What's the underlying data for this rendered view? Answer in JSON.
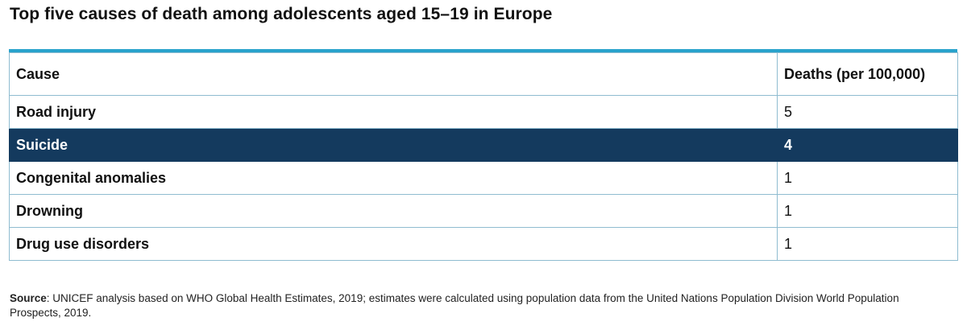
{
  "title": "Top five causes of death among adolescents aged 15–19 in Europe",
  "table": {
    "headers": [
      "Cause",
      "Deaths (per 100,000)"
    ],
    "rows": [
      {
        "cause": "Road injury",
        "deaths": "5"
      },
      {
        "cause": "Suicide",
        "deaths": "4"
      },
      {
        "cause": "Congenital anomalies",
        "deaths": "1"
      },
      {
        "cause": "Drowning",
        "deaths": "1"
      },
      {
        "cause": "Drug use disorders",
        "deaths": "1"
      }
    ],
    "highlight_color": "#143a5e",
    "accent_color": "#29a3cc"
  },
  "source": {
    "label": "Source",
    "text": ": UNICEF analysis based on WHO Global Health Estimates, 2019; estimates were calculated using population data from the United Nations Population Division World Population Prospects, 2019."
  },
  "chart_data": {
    "type": "table",
    "title": "Top five causes of death among adolescents aged 15–19 in Europe",
    "columns": [
      "Cause",
      "Deaths (per 100,000)"
    ],
    "categories": [
      "Road injury",
      "Suicide",
      "Congenital anomalies",
      "Drowning",
      "Drug use disorders"
    ],
    "values": [
      5,
      4,
      1,
      1,
      1
    ],
    "highlighted_row": "Suicide"
  }
}
